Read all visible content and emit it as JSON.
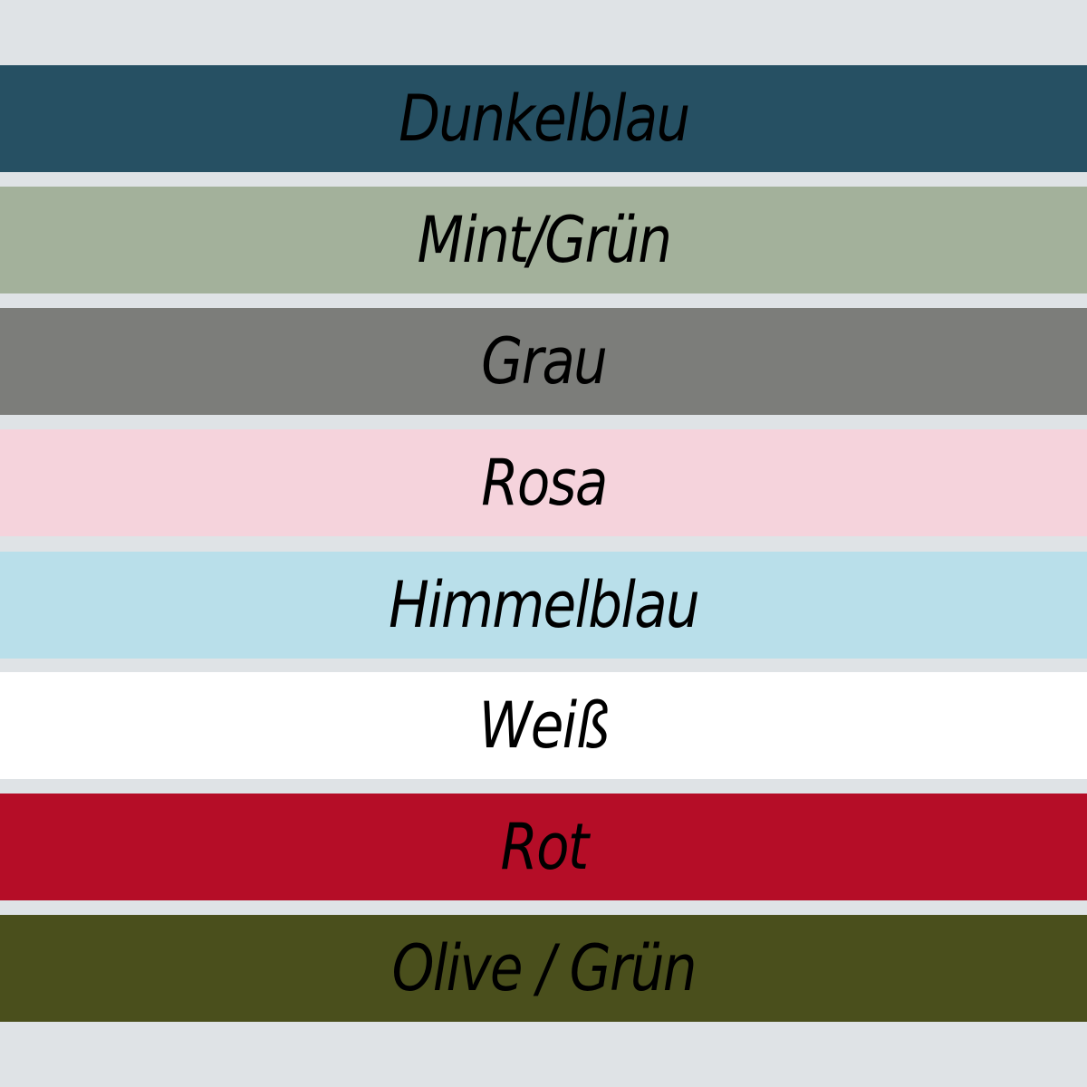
{
  "background_color": "#dfe3e6",
  "swatches": [
    {
      "label": "Dunkelblau",
      "color": "#265063"
    },
    {
      "label": "Mint/Grün",
      "color": "#a3b19b"
    },
    {
      "label": "Grau",
      "color": "#7c7d7a"
    },
    {
      "label": "Rosa",
      "color": "#f5d3dc"
    },
    {
      "label": "Himmelblau",
      "color": "#b9dfea"
    },
    {
      "label": "Weiß",
      "color": "#ffffff"
    },
    {
      "label": "Rot",
      "color": "#b50d27"
    },
    {
      "label": "Olive / Grün",
      "color": "#4a4f1c"
    }
  ]
}
